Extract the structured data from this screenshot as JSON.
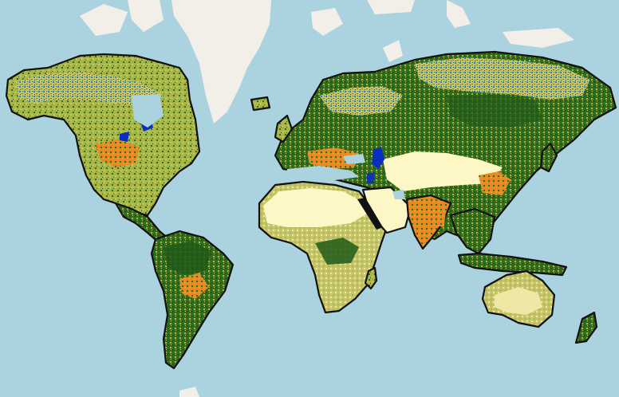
{
  "map": {
    "projection": "web-mercator",
    "colors": {
      "ocean": "#aad3df",
      "ice": "#f2efe9",
      "desert": "#fdf7c6",
      "sand": "#efe7a4",
      "grassland": "#c6c46a",
      "cropland": "#a9b746",
      "shrub": "#8fa23e",
      "forest": "#2f6e1e",
      "dense_forest": "#1f5a18",
      "tundra_blue": "#2e7bd6",
      "water_deep": "#0a2fbf",
      "urban_orange": "#f2861e",
      "coast_outline": "#111111"
    },
    "layers": [
      "ocean-background",
      "landmass-polygons",
      "land-cover-classification",
      "ice-sheets"
    ]
  }
}
